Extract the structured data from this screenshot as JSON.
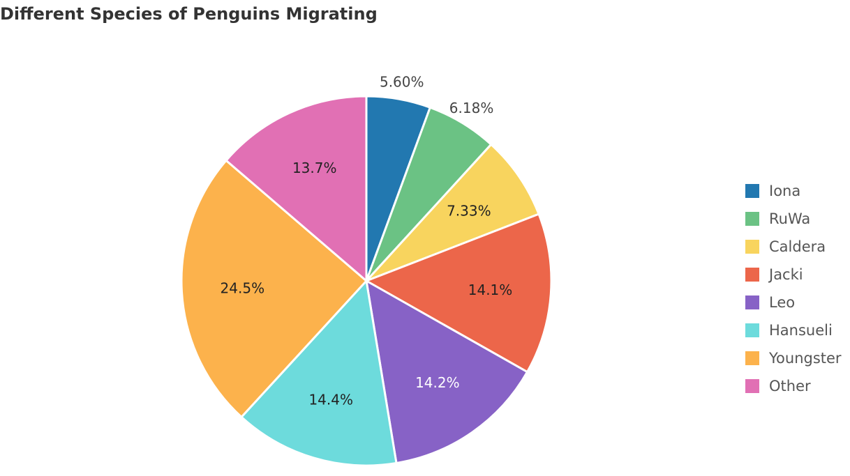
{
  "chart_data": {
    "type": "pie",
    "title": "Different Species of Penguins Migrating",
    "categories": [
      "Iona",
      "RuWa",
      "Caldera",
      "Jacki",
      "Leo",
      "Hansueli",
      "Youngster",
      "Other"
    ],
    "values": [
      5.6,
      6.18,
      7.33,
      14.1,
      14.2,
      14.4,
      24.5,
      13.7
    ],
    "data_labels": [
      "5.60%",
      "6.18%",
      "7.33%",
      "14.1%",
      "14.2%",
      "14.4%",
      "24.5%",
      "13.7%"
    ],
    "colors": [
      "#2278b0",
      "#6bc284",
      "#f8d45e",
      "#ec664a",
      "#8762c6",
      "#6ddbdc",
      "#fcb24c",
      "#e170b4"
    ],
    "label_colors": [
      "#444444",
      "#444444",
      "#222222",
      "#222222",
      "#ffffff",
      "#222222",
      "#222222",
      "#222222"
    ],
    "label_outside": [
      true,
      true,
      false,
      false,
      false,
      false,
      false,
      false
    ],
    "start_angle_deg": 0,
    "direction": "clockwise",
    "legend_position": "right"
  }
}
